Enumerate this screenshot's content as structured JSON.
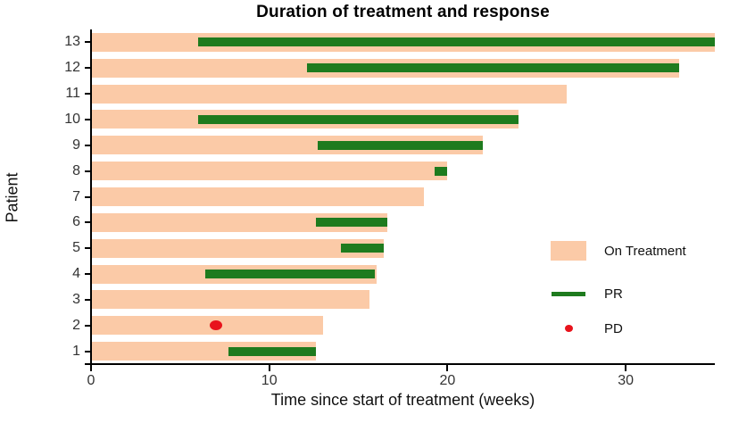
{
  "chart_data": {
    "type": "bar",
    "subtype": "swimmer-plot",
    "orientation": "horizontal",
    "title": "Duration of treatment and response",
    "xlabel": "Time since start of treatment (weeks)",
    "ylabel": "Patient",
    "xlim": [
      0,
      35
    ],
    "xticks": [
      0,
      10,
      20,
      30
    ],
    "grid": false,
    "legend_position": "inside-right",
    "colors": {
      "on_treatment": "#FBCAA7",
      "pr": "#1E7B1E",
      "pd": "#E8131C",
      "axis": "#000000",
      "tick_text": "#333333",
      "title_text": "#000000"
    },
    "patients": [
      {
        "id": 13,
        "on_treatment_weeks": 35.0,
        "pr_start": 6.0,
        "pr_end": 35.0,
        "pd_week": null
      },
      {
        "id": 12,
        "on_treatment_weeks": 33.0,
        "pr_start": 12.1,
        "pr_end": 33.0,
        "pd_week": null
      },
      {
        "id": 11,
        "on_treatment_weeks": 26.7,
        "pr_start": null,
        "pr_end": null,
        "pd_week": null
      },
      {
        "id": 10,
        "on_treatment_weeks": 24.0,
        "pr_start": 6.0,
        "pr_end": 24.0,
        "pd_week": null
      },
      {
        "id": 9,
        "on_treatment_weeks": 22.0,
        "pr_start": 12.7,
        "pr_end": 22.0,
        "pd_week": null
      },
      {
        "id": 8,
        "on_treatment_weeks": 20.0,
        "pr_start": 19.3,
        "pr_end": 20.0,
        "pd_week": null
      },
      {
        "id": 7,
        "on_treatment_weeks": 18.7,
        "pr_start": null,
        "pr_end": null,
        "pd_week": null
      },
      {
        "id": 6,
        "on_treatment_weeks": 16.6,
        "pr_start": 12.6,
        "pr_end": 16.6,
        "pd_week": null
      },
      {
        "id": 5,
        "on_treatment_weeks": 16.4,
        "pr_start": 14.0,
        "pr_end": 16.4,
        "pd_week": null
      },
      {
        "id": 4,
        "on_treatment_weeks": 16.0,
        "pr_start": 6.4,
        "pr_end": 15.9,
        "pd_week": null
      },
      {
        "id": 3,
        "on_treatment_weeks": 15.6,
        "pr_start": null,
        "pr_end": null,
        "pd_week": null
      },
      {
        "id": 2,
        "on_treatment_weeks": 13.0,
        "pr_start": null,
        "pr_end": null,
        "pd_week": 7.0
      },
      {
        "id": 1,
        "on_treatment_weeks": 12.6,
        "pr_start": 7.7,
        "pr_end": 12.6,
        "pd_week": null
      }
    ],
    "legend": [
      {
        "label": "On Treatment",
        "marker": "bar",
        "color": "#FBCAA7"
      },
      {
        "label": "PR",
        "marker": "line",
        "color": "#1E7B1E"
      },
      {
        "label": "PD",
        "marker": "dot",
        "color": "#E8131C"
      }
    ]
  }
}
